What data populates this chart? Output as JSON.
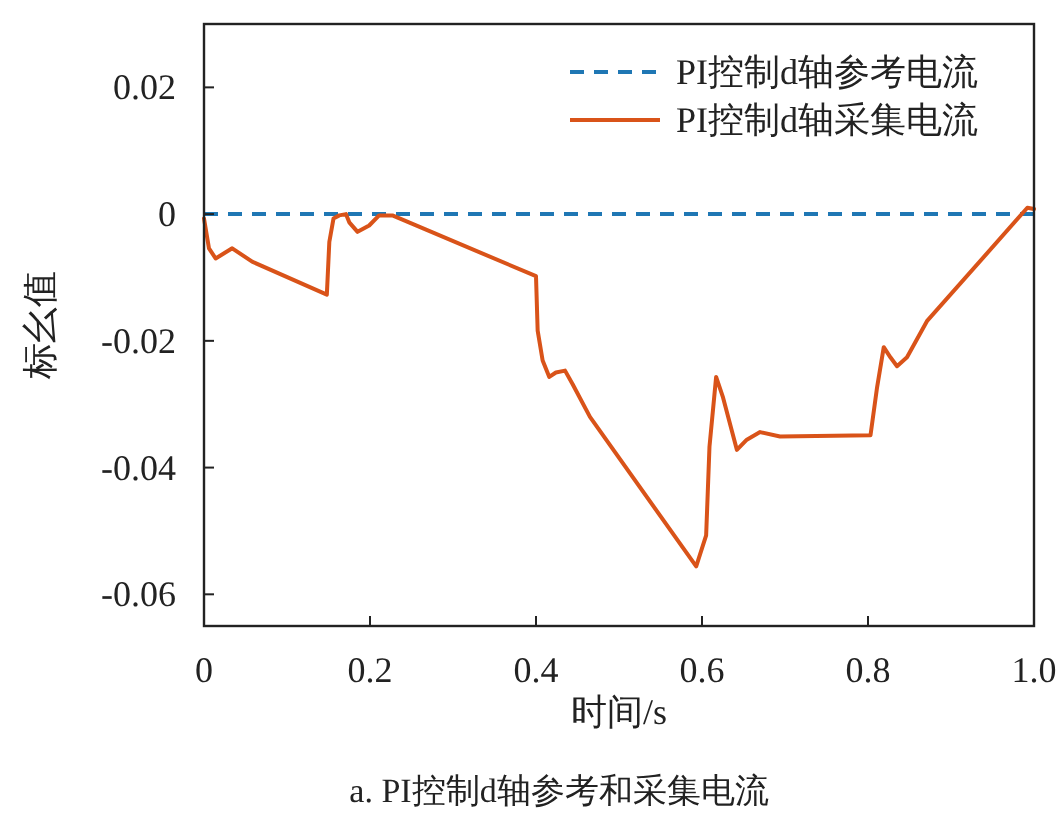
{
  "chart_data": {
    "type": "line",
    "xlabel": "时间/s",
    "ylabel": "标幺值",
    "annotations": [
      "a. PI控制d轴参考和采集电流"
    ],
    "xlim": [
      0,
      1
    ],
    "xticks": [
      0,
      0.2,
      0.4,
      0.6,
      0.8,
      {
        "value": 1,
        "label": "1.0"
      }
    ],
    "ylim": [
      -0.065,
      0.03
    ],
    "yticks": [
      -0.06,
      -0.04,
      -0.02,
      0,
      0.02
    ],
    "grid": false,
    "legend": "top right",
    "series": [
      {
        "name": "PI控制d轴参考电流",
        "color": "#1f77b4",
        "line_style": "dashed",
        "x": [
          0,
          1
        ],
        "values": [
          0,
          0
        ]
      },
      {
        "name": "PI控制d轴采集电流",
        "color": "#d95319",
        "line_style": "solid",
        "x": [
          0,
          0.006,
          0.014,
          0.034,
          0.058,
          0.148,
          0.151,
          0.156,
          0.163,
          0.171,
          0.175,
          0.185,
          0.199,
          0.211,
          0.227,
          0.4,
          0.402,
          0.408,
          0.416,
          0.424,
          0.435,
          0.444,
          0.465,
          0.593,
          0.605,
          0.609,
          0.617,
          0.625,
          0.642,
          0.654,
          0.67,
          0.694,
          0.803,
          0.811,
          0.819,
          0.827,
          0.835,
          0.847,
          0.871,
          0.992,
          1.0
        ],
        "values": [
          -0.0007,
          -0.0054,
          -0.007,
          -0.0054,
          -0.0075,
          -0.0127,
          -0.0044,
          -0.0007,
          -0.0002,
          0,
          -0.0013,
          -0.0028,
          -0.0018,
          -0.0002,
          -0.0002,
          -0.0098,
          -0.0184,
          -0.0231,
          -0.0257,
          -0.025,
          -0.0247,
          -0.0268,
          -0.032,
          -0.0556,
          -0.0507,
          -0.0367,
          -0.0257,
          -0.0288,
          -0.0372,
          -0.0356,
          -0.0344,
          -0.0351,
          -0.0349,
          -0.0273,
          -0.021,
          -0.0226,
          -0.024,
          -0.0226,
          -0.0169,
          0.001,
          0.0008
        ]
      }
    ]
  }
}
